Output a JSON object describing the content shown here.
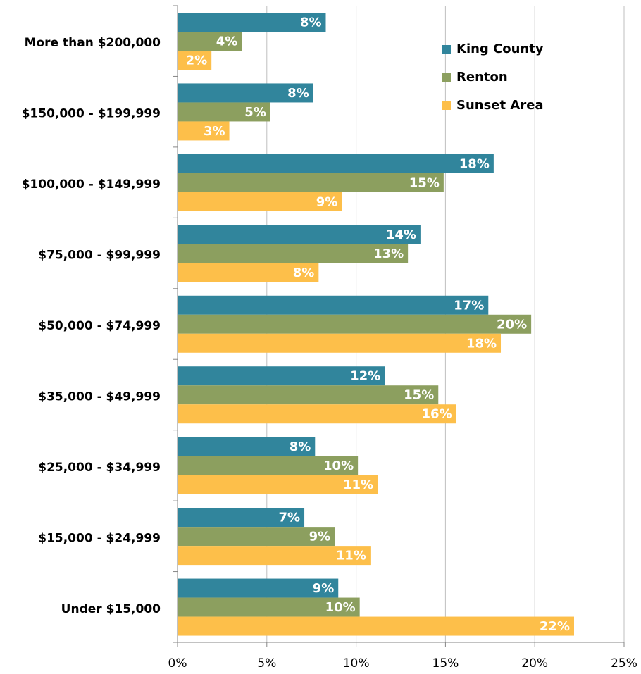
{
  "chart_data": {
    "type": "hbar",
    "categories": [
      "More than $200,000",
      "$150,000 - $199,999",
      "$100,000 - $149,999",
      "$75,000 - $99,999",
      "$50,000 - $74,999",
      "$35,000 - $49,999",
      "$25,000 - $34,999",
      "$15,000 - $24,999",
      "Under $15,000"
    ],
    "series": [
      {
        "name": "King County",
        "color": "#31859c",
        "values": [
          8.3,
          7.6,
          17.7,
          13.6,
          17.4,
          11.6,
          7.7,
          7.1,
          9.0
        ],
        "value_labels": [
          "8%",
          "8%",
          "18%",
          "14%",
          "17%",
          "12%",
          "8%",
          "7%",
          "9%"
        ]
      },
      {
        "name": "Renton",
        "color": "#8c9f5f",
        "values": [
          3.6,
          5.2,
          14.9,
          12.9,
          19.8,
          14.6,
          10.1,
          8.8,
          10.2
        ],
        "value_labels": [
          "4%",
          "5%",
          "15%",
          "13%",
          "20%",
          "15%",
          "10%",
          "9%",
          "10%"
        ]
      },
      {
        "name": "Sunset Area",
        "color": "#fdbf4a",
        "values": [
          1.9,
          2.9,
          9.2,
          7.9,
          18.1,
          15.6,
          11.2,
          10.8,
          22.2
        ],
        "value_labels": [
          "2%",
          "3%",
          "9%",
          "8%",
          "18%",
          "16%",
          "11%",
          "11%",
          "22%"
        ]
      }
    ],
    "xlim": [
      0,
      25
    ],
    "xticks": [
      {
        "value": 0,
        "label": "0%"
      },
      {
        "value": 5,
        "label": "5%"
      },
      {
        "value": 10,
        "label": "10%"
      },
      {
        "value": 15,
        "label": "15%"
      },
      {
        "value": 20,
        "label": "20%"
      },
      {
        "value": 25,
        "label": "25%"
      }
    ],
    "grid": true,
    "legend": "upper right"
  }
}
